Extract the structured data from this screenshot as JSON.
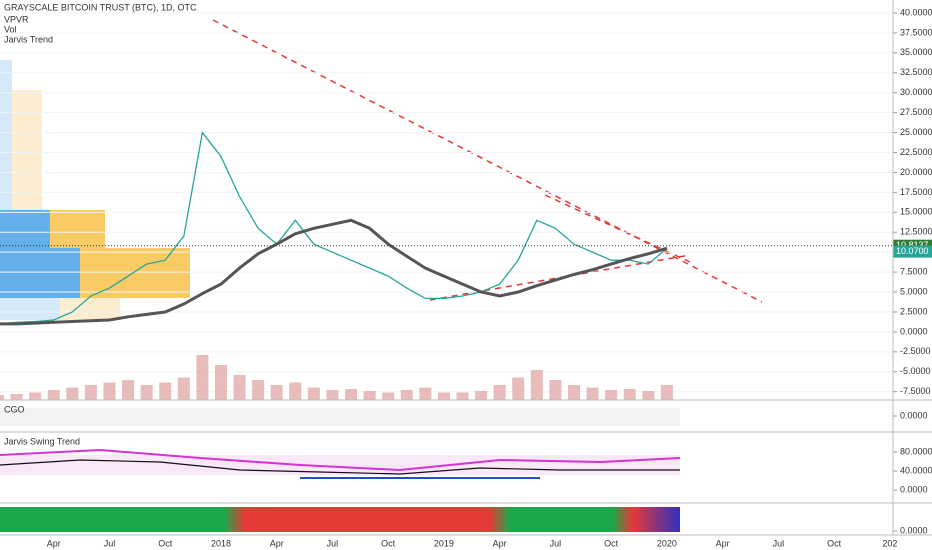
{
  "chart_data": [
    {
      "type": "line",
      "title": "GRAYSCALE BITCOIN TRUST (BTC), 1D, OTC",
      "indicators": [
        "VPVR",
        "Vol",
        "Jarvis Trend"
      ],
      "categories": [
        null,
        null,
        null,
        "Apr",
        null,
        null,
        "Jul",
        null,
        null,
        "Oct",
        null,
        null,
        "2018",
        null,
        null,
        "Apr",
        null,
        null,
        "Jul",
        null,
        null,
        "Oct",
        null,
        null,
        "2019",
        null,
        null,
        "Apr",
        null,
        null,
        "Jul",
        null,
        null,
        "Oct",
        null,
        null,
        "2020",
        null,
        null,
        "Apr",
        null,
        null,
        "Jul",
        null,
        null,
        "Oct",
        null,
        null,
        "202"
      ],
      "series": [
        {
          "color": "#26a69a",
          "values": [
            1.0,
            1.2,
            1.3,
            1.5,
            2.5,
            4.5,
            5.5,
            7,
            8.5,
            9,
            12,
            25,
            22,
            17,
            13,
            11,
            14,
            11,
            10,
            9,
            8,
            7,
            5.5,
            4.2,
            4.2,
            4.5,
            5,
            6,
            9,
            14,
            13,
            11,
            10,
            9,
            9,
            8.5,
            10.5,
            null,
            null,
            null,
            null,
            null,
            null,
            null,
            null,
            null,
            null,
            null,
            null
          ]
        },
        {
          "color": "#555555",
          "values": [
            1.0,
            1.0,
            1.1,
            1.2,
            1.3,
            1.4,
            1.5,
            1.9,
            2.2,
            2.5,
            3.5,
            4.8,
            6,
            8,
            9.8,
            11,
            12.3,
            13,
            13.5,
            14,
            13,
            11,
            9.5,
            8,
            7,
            6,
            5,
            4.5,
            5,
            5.8,
            6.5,
            7.2,
            7.8,
            8.5,
            9.2,
            9.8,
            10.5,
            null,
            null,
            null,
            null,
            null,
            null,
            null,
            null,
            null,
            null,
            null,
            null
          ]
        }
      ],
      "ylim": [
        -8.54,
        41.63
      ],
      "yticks": [
        {
          "value": 40,
          "label": "40.0000"
        },
        {
          "value": 37.5,
          "label": "37.5000"
        },
        {
          "value": 35,
          "label": "35.0000"
        },
        {
          "value": 32.5,
          "label": "32.5000"
        },
        {
          "value": 30,
          "label": "30.0000"
        },
        {
          "value": 27.5,
          "label": "27.5000"
        },
        {
          "value": 25,
          "label": "25.0000"
        },
        {
          "value": 22.5,
          "label": "22.5000"
        },
        {
          "value": 20,
          "label": "20.0000"
        },
        {
          "value": 17.5,
          "label": "17.5000"
        },
        {
          "value": 15,
          "label": "15.0000"
        },
        {
          "value": 12.5,
          "label": "12.5000"
        },
        {
          "value": 10,
          "label": "10.0000"
        },
        {
          "value": 7.5,
          "label": "7.5000"
        },
        {
          "value": 5,
          "label": "5.0000"
        },
        {
          "value": 2.5,
          "label": "2.5000"
        },
        {
          "value": 0,
          "label": "0.0000"
        },
        {
          "value": -2.5,
          "label": "-2.5000"
        },
        {
          "value": -5,
          "label": "-5.0000"
        },
        {
          "value": -7.5,
          "label": "-7.5000"
        }
      ],
      "price_labels": [
        {
          "value": 10.8137,
          "label": "10.8137"
        },
        {
          "value": 10.07,
          "label": "10.0700"
        }
      ],
      "grid": true
    },
    {
      "type": "bar",
      "color": "#e0a0a0",
      "values": [
        10,
        12,
        15,
        20,
        25,
        30,
        35,
        40,
        30,
        35,
        45,
        90,
        70,
        50,
        40,
        30,
        35,
        25,
        20,
        22,
        18,
        15,
        20,
        25,
        15,
        15,
        18,
        30,
        45,
        60,
        40,
        30,
        25,
        20,
        22,
        18,
        30,
        null,
        null,
        null,
        null,
        null,
        null,
        null,
        null,
        null,
        null,
        null,
        null
      ],
      "ylim": [
        0,
        120
      ]
    },
    {
      "type": "line",
      "title": "CGO",
      "ylim": [
        -1,
        1
      ],
      "yticks": [
        {
          "value": 0,
          "label": "0.0000"
        }
      ]
    },
    {
      "type": "line",
      "title": "Jarvis Swing Trend",
      "ylim": [
        -27,
        122
      ],
      "yticks": [
        {
          "value": 80,
          "label": "80.0000"
        },
        {
          "value": 40,
          "label": "40.0000"
        },
        {
          "value": 0,
          "label": "0.0000"
        }
      ]
    },
    {
      "type": "bar",
      "ylim": [
        -0.2,
        1.4
      ],
      "yticks": [
        {
          "value": 0,
          "label": "0.0000"
        }
      ]
    }
  ]
}
